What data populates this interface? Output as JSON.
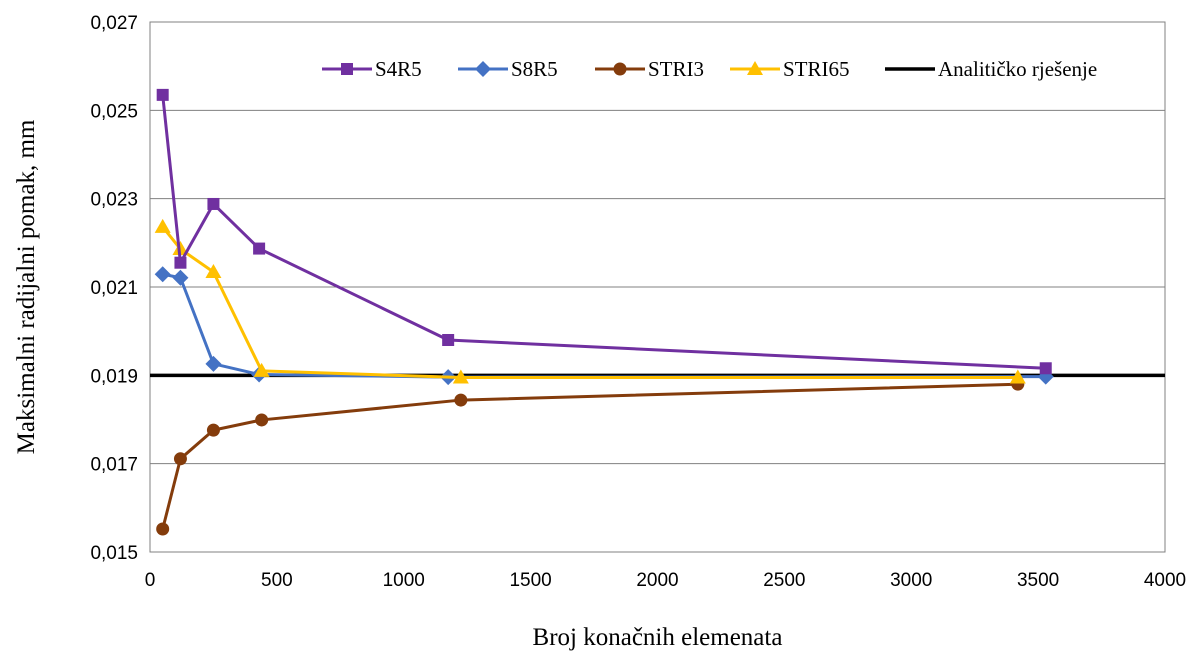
{
  "chart_data": {
    "type": "line",
    "xlabel": "Broj konačnih elemenata",
    "ylabel": "Maksimalni radijalni pomak, mm",
    "xlim": [
      0,
      4000
    ],
    "ylim": [
      0.015,
      0.027
    ],
    "x_ticks": [
      "0",
      "500",
      "1000",
      "1500",
      "2000",
      "2500",
      "3000",
      "3500",
      "4000"
    ],
    "y_ticks": [
      "0,015",
      "0,017",
      "0,019",
      "0,021",
      "0,023",
      "0,025",
      "0,027"
    ],
    "grid": "horizontal",
    "legend_position": "top-right",
    "series": [
      {
        "name": "S4R5",
        "color": "#7030a0",
        "marker": "square",
        "x": [
          50,
          120,
          250,
          430,
          1175,
          3530
        ],
        "y": [
          0.02535,
          0.02155,
          0.02288,
          0.02187,
          0.0198,
          0.01916
        ]
      },
      {
        "name": "S8R5",
        "color": "#4472c4",
        "marker": "diamond",
        "x": [
          50,
          120,
          250,
          430,
          1175,
          3530
        ],
        "y": [
          0.02129,
          0.02121,
          0.01926,
          0.01902,
          0.01896,
          0.01897
        ]
      },
      {
        "name": "STRI3",
        "color": "#843c0c",
        "marker": "circle",
        "x": [
          50,
          120,
          250,
          440,
          1225,
          3420
        ],
        "y": [
          0.01552,
          0.01711,
          0.01776,
          0.01799,
          0.01844,
          0.0188
        ]
      },
      {
        "name": "STRI65",
        "color": "#ffc000",
        "marker": "triangle",
        "x": [
          50,
          120,
          250,
          440,
          1225,
          3420
        ],
        "y": [
          0.02236,
          0.02186,
          0.02134,
          0.0191,
          0.01895,
          0.01895
        ]
      },
      {
        "name": "Analitičko rješenje",
        "color": "#000000",
        "marker": "none",
        "x": [
          0,
          4000
        ],
        "y": [
          0.019,
          0.019
        ]
      }
    ]
  }
}
